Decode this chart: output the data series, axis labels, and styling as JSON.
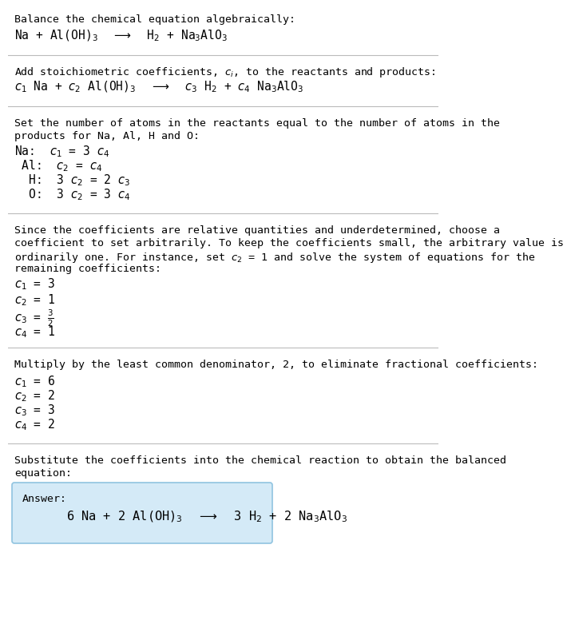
{
  "bg_color": "#ffffff",
  "text_color": "#000000",
  "section1_title": "Balance the chemical equation algebraically:",
  "section1_eq": "Na + Al(OH)$_3$  $\\longrightarrow$  H$_2$ + Na$_3$AlO$_3$",
  "section2_title": "Add stoichiometric coefficients, $c_i$, to the reactants and products:",
  "section2_eq": "$c_1$ Na + $c_2$ Al(OH)$_3$  $\\longrightarrow$  $c_3$ H$_2$ + $c_4$ Na$_3$AlO$_3$",
  "section3_title_lines": [
    "Set the number of atoms in the reactants equal to the number of atoms in the",
    "products for Na, Al, H and O:"
  ],
  "section3_lines": [
    "Na:  $c_1$ = 3 $c_4$",
    " Al:  $c_2$ = $c_4$",
    "  H:  3 $c_2$ = 2 $c_3$",
    "  O:  3 $c_2$ = 3 $c_4$"
  ],
  "section4_title_lines": [
    "Since the coefficients are relative quantities and underdetermined, choose a",
    "coefficient to set arbitrarily. To keep the coefficients small, the arbitrary value is",
    "ordinarily one. For instance, set $c_2$ = 1 and solve the system of equations for the",
    "remaining coefficients:"
  ],
  "section4_lines": [
    "$c_1$ = 3",
    "$c_2$ = 1",
    "$c_3$ = $\\frac{3}{2}$",
    "$c_4$ = 1"
  ],
  "section5_title": "Multiply by the least common denominator, 2, to eliminate fractional coefficients:",
  "section5_lines": [
    "$c_1$ = 6",
    "$c_2$ = 2",
    "$c_3$ = 3",
    "$c_4$ = 2"
  ],
  "section6_title_lines": [
    "Substitute the coefficients into the chemical reaction to obtain the balanced",
    "equation:"
  ],
  "answer_label": "Answer:",
  "answer_eq": "      6 Na + 2 Al(OH)$_3$  $\\longrightarrow$  3 H$_2$ + 2 Na$_3$AlO$_3$",
  "answer_box_color": "#d4eaf7",
  "answer_box_edge": "#90c4e0",
  "font_size_body": 9.5,
  "font_size_eq": 10.5,
  "font_size_answer": 11
}
